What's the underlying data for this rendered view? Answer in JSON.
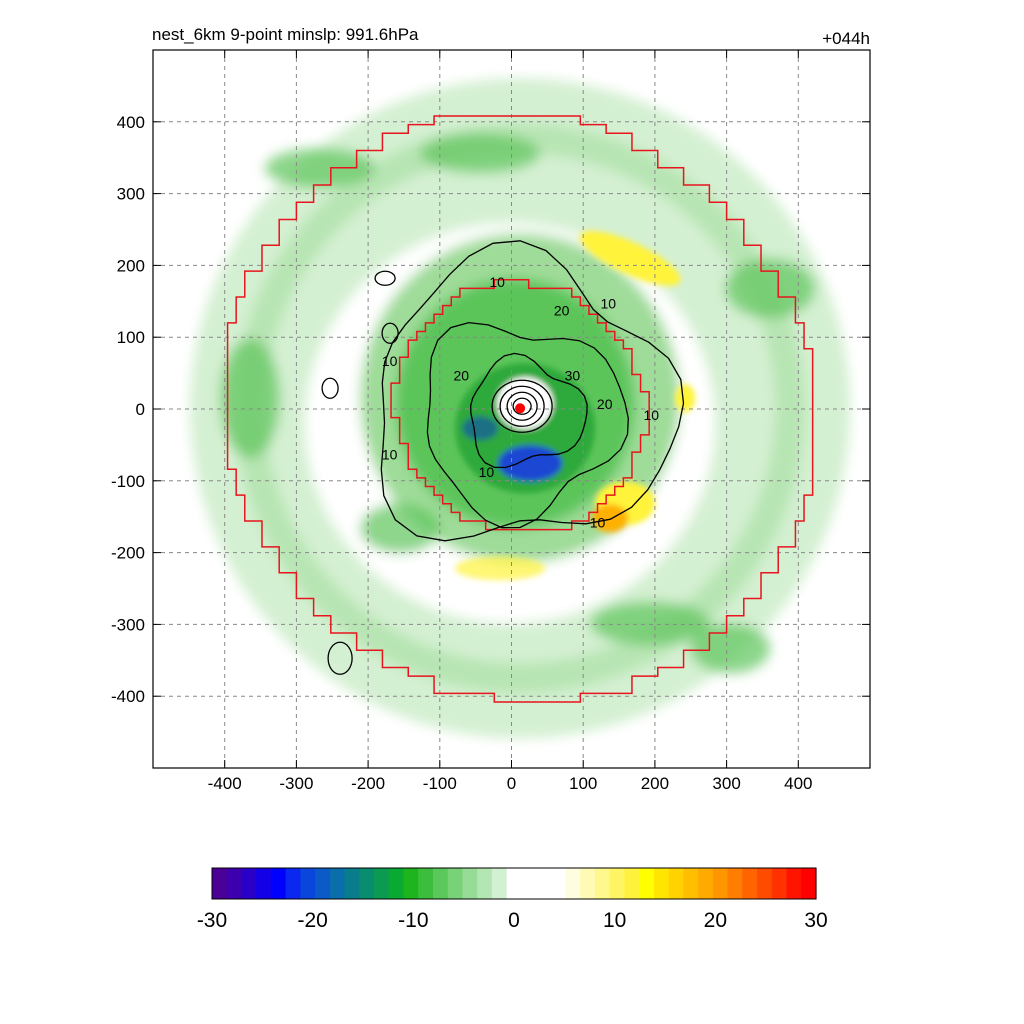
{
  "header": {
    "title": "nest_6km  9-point minslp: 991.6hPa",
    "time_label": "+044h"
  },
  "colors": {
    "boundary": "#e8141e",
    "center_marker": "#ff0000",
    "contour": "#000000",
    "grid": "#888888",
    "light_green": "#d4f0d2",
    "mid_green": "#9fdc99",
    "green": "#5cc55a",
    "dark_green": "#2fa93a",
    "deep_green": "#178a3b",
    "teal": "#1a6f86",
    "blue": "#1e46d2",
    "yellow": "#fff33a",
    "orange": "#ffb000"
  },
  "chart_data": {
    "type": "heatmap",
    "title": "nest_6km  9-point minslp: 991.6hPa",
    "xlim": [
      -500,
      500
    ],
    "ylim": [
      -500,
      500
    ],
    "x_ticks": [
      -400,
      -300,
      -200,
      -100,
      0,
      100,
      200,
      300,
      400
    ],
    "y_ticks": [
      -400,
      -300,
      -200,
      -100,
      0,
      100,
      200,
      300,
      400
    ],
    "grid": true,
    "center": [
      12,
      1
    ],
    "colorbar": {
      "range": [
        -30,
        30
      ],
      "tick_labels": [
        "-30",
        "-20",
        "-10",
        "0",
        "10",
        "20",
        "30"
      ],
      "colors": [
        "#4b0096",
        "#3c00ae",
        "#2a00c8",
        "#1400e6",
        "#0000ff",
        "#0a28f0",
        "#0a46dc",
        "#0a5ac8",
        "#0a6eaa",
        "#0a7d8c",
        "#0a8c6e",
        "#0a9b50",
        "#0aaa32",
        "#1eb41e",
        "#3cbe3c",
        "#5ac85a",
        "#78d278",
        "#96dc96",
        "#b4e6b4",
        "#d2f0d2",
        "#ffffff",
        "#ffffff",
        "#ffffff",
        "#ffffff",
        "#fffde0",
        "#fffbb4",
        "#fff88c",
        "#fff564",
        "#fff23c",
        "#ffff00",
        "#ffe600",
        "#ffd200",
        "#ffbe00",
        "#ffaa00",
        "#ff9600",
        "#ff7d00",
        "#ff6400",
        "#ff4b00",
        "#ff3200",
        "#ff1400",
        "#ff0000"
      ]
    },
    "contour_labels": [
      {
        "text": "10",
        "x": -20,
        "y": 170
      },
      {
        "text": "10",
        "x": 135,
        "y": 140
      },
      {
        "text": "20",
        "x": 70,
        "y": 130
      },
      {
        "text": "10",
        "x": -170,
        "y": 60
      },
      {
        "text": "20",
        "x": -70,
        "y": 40
      },
      {
        "text": "30",
        "x": 85,
        "y": 40
      },
      {
        "text": "20",
        "x": 130,
        "y": 0
      },
      {
        "text": "10",
        "x": 195,
        "y": -15
      },
      {
        "text": "10",
        "x": -170,
        "y": -70
      },
      {
        "text": "10",
        "x": -35,
        "y": -95
      },
      {
        "text": "10",
        "x": 120,
        "y": -165
      }
    ]
  }
}
